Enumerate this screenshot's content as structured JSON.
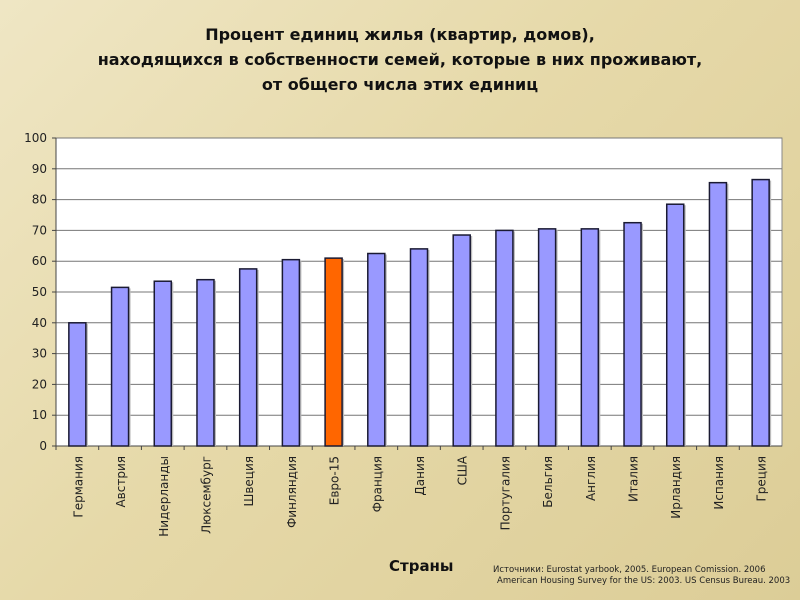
{
  "titles": {
    "line1": "Процент единиц жилья (квартир, домов),",
    "line2": "находящихся в собственности семей, которые в них проживают,",
    "line3": "от общего числа этих единиц"
  },
  "footer": {
    "xlabel": "Страны",
    "source_line1": "Источники: Eurostat yarbook, 2005. European Comission. 2006",
    "source_line2": "American Housing Survey for the US: 2003. US Census Bureau. 2003"
  },
  "colors": {
    "bar": "#9999ff",
    "highlight": "#ff6600",
    "bar_stroke": "#1a1a33",
    "grid": "#777777"
  },
  "chart_data": {
    "type": "bar",
    "title": "Процент единиц жилья (квартир, домов), находящихся в собственности семей, которые в них проживают, от общего числа этих единиц",
    "xlabel": "Страны",
    "ylabel": "",
    "ylim": [
      0,
      100
    ],
    "yticks": [
      0,
      10,
      20,
      30,
      40,
      50,
      60,
      70,
      80,
      90,
      100
    ],
    "grid": true,
    "categories": [
      "Германия",
      "Австрия",
      "Нидерланды",
      "Люксембург",
      "Швеция",
      "Финляндия",
      "Евро-15",
      "Франция",
      "Дания",
      "США",
      "Португалия",
      "Бельгия",
      "Англия",
      "Италия",
      "Ирландия",
      "Испания",
      "Греция"
    ],
    "values": [
      40,
      51.5,
      53.5,
      54,
      57.5,
      60.5,
      61,
      62.5,
      64,
      68.5,
      70,
      70.5,
      70.5,
      72.5,
      78.5,
      85.5,
      86.5
    ],
    "highlight_index": 6
  }
}
